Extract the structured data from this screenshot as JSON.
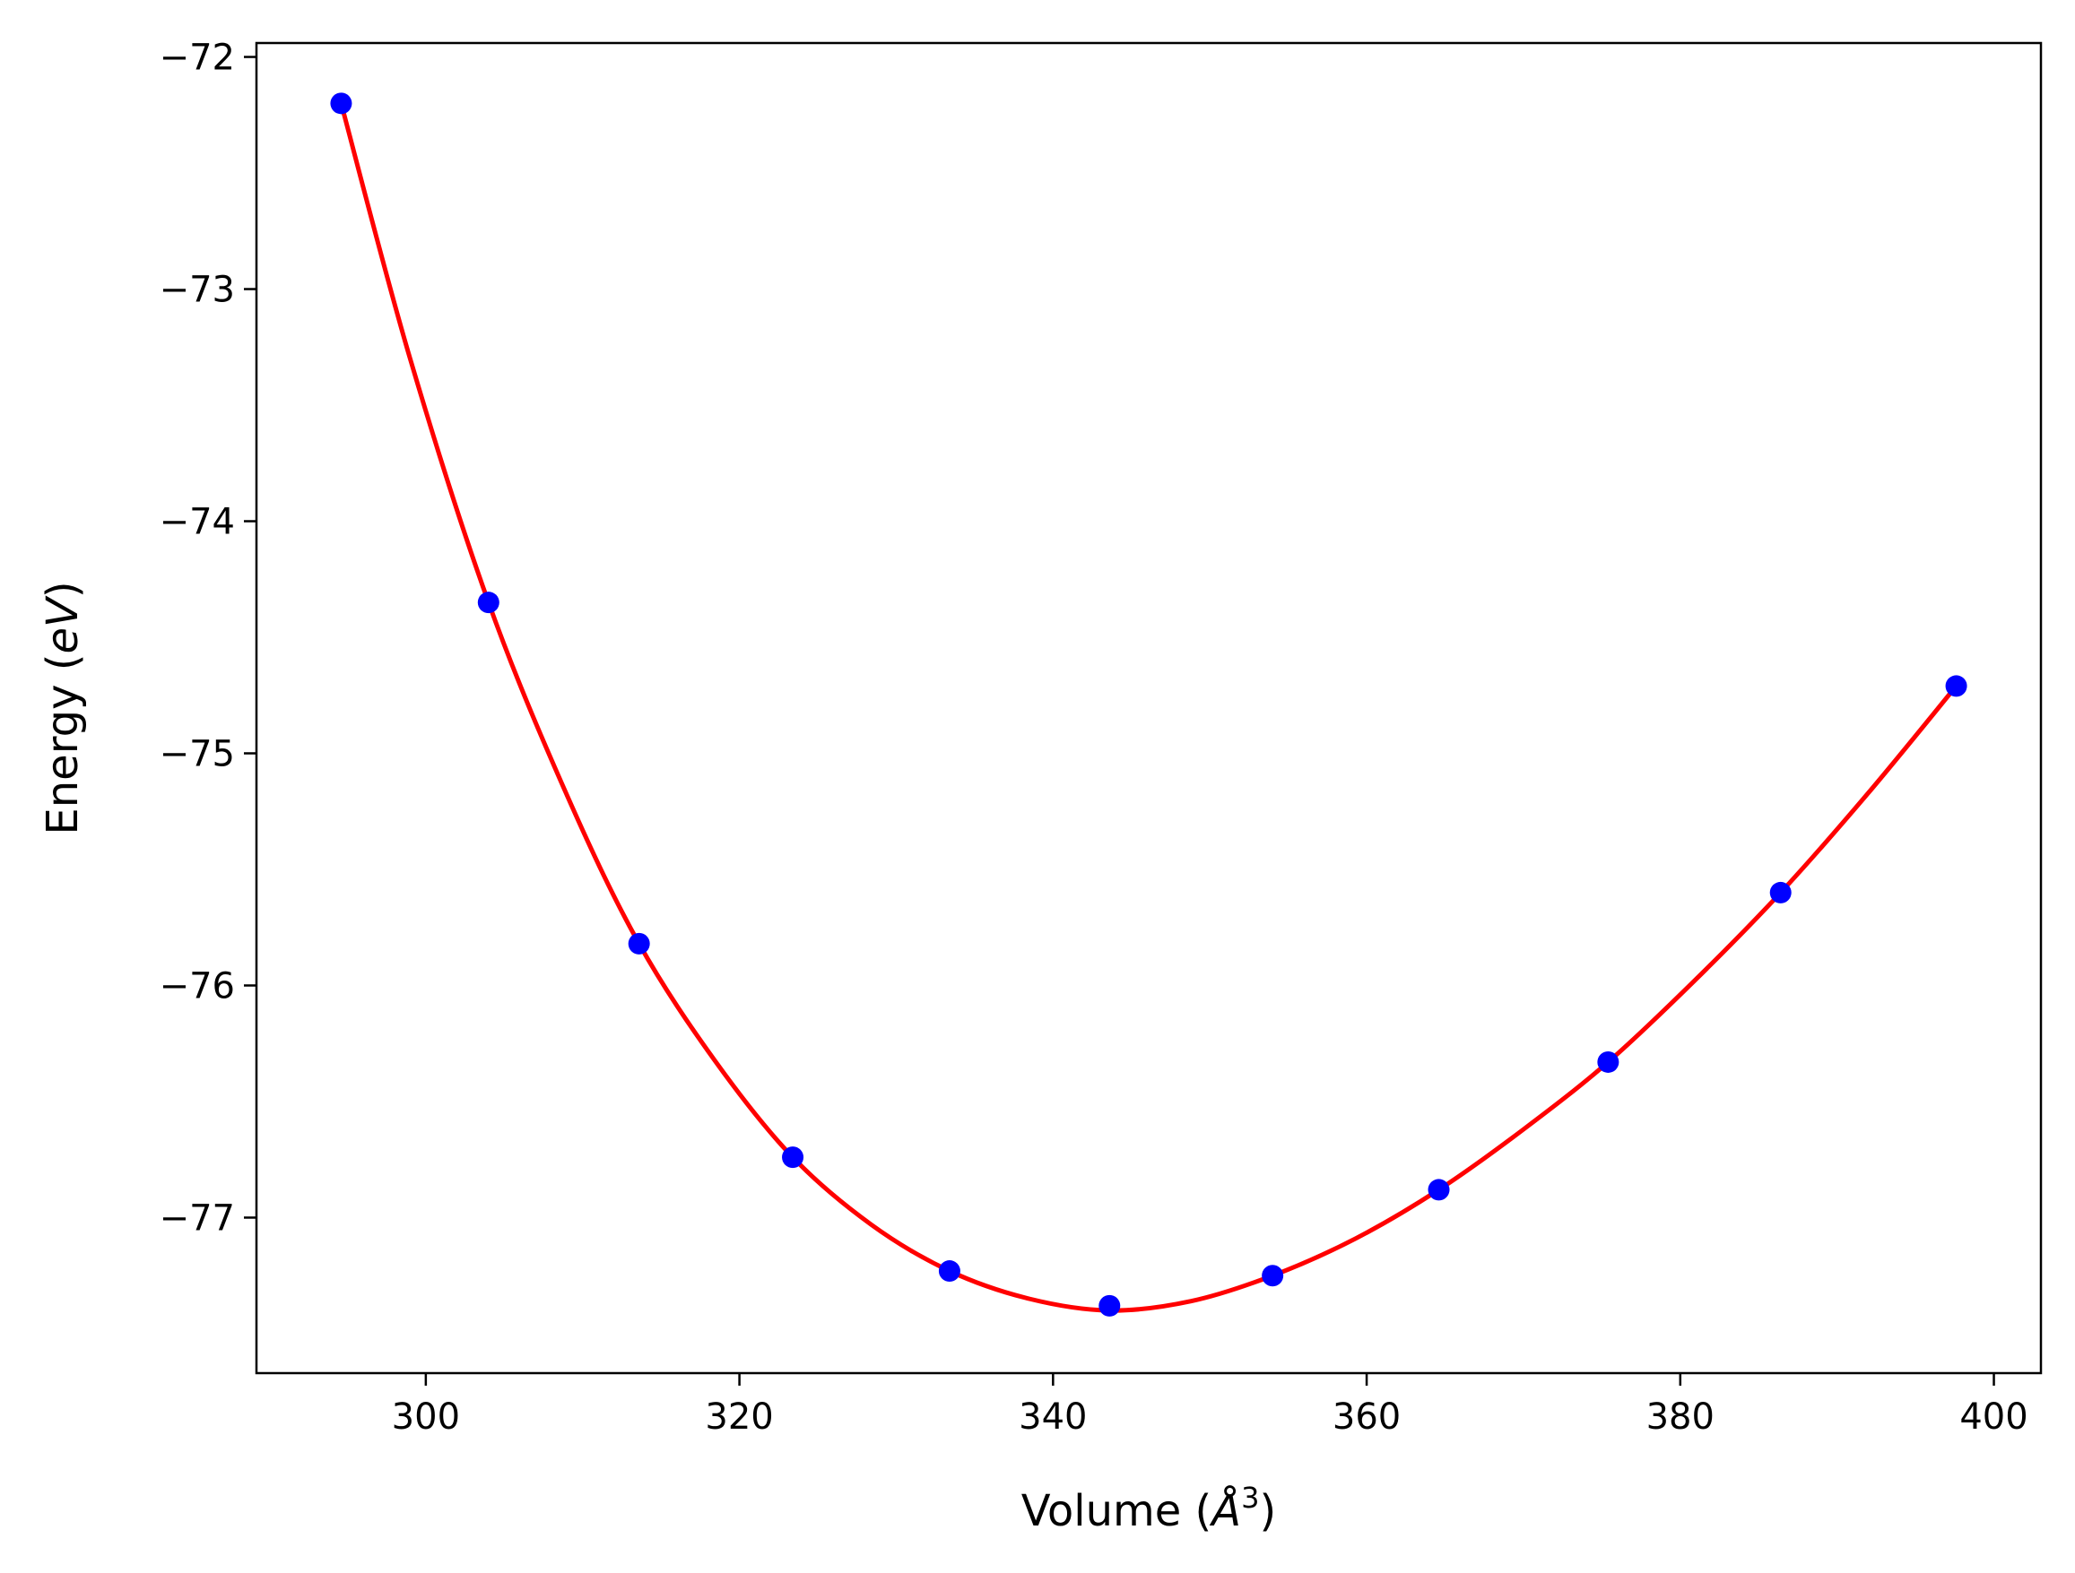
{
  "chart_data": {
    "type": "scatter",
    "title": "",
    "xlabel": "Volume ($\\AA^3$)",
    "ylabel": "Energy ($eV$)",
    "xlabel_parts": {
      "prefix": "Volume (",
      "symbol": "Å",
      "sup": "3",
      "suffix": ")"
    },
    "ylabel_parts": {
      "prefix": "Energy (",
      "symbol": "eV",
      "suffix": ")"
    },
    "xlim": [
      289.2,
      403.0
    ],
    "ylim": [
      -77.67,
      -71.94
    ],
    "xticks": [
      300,
      320,
      340,
      360,
      380,
      400
    ],
    "xtick_labels": [
      "300",
      "320",
      "340",
      "360",
      "380",
      "400"
    ],
    "yticks": [
      -72,
      -73,
      -74,
      -75,
      -76,
      -77
    ],
    "ytick_labels": [
      "−72",
      "−73",
      "−74",
      "−75",
      "−76",
      "−77"
    ],
    "grid": false,
    "series": [
      {
        "kind": "points",
        "color": "#0000ff",
        "points": [
          {
            "x": 294.6,
            "y": -72.2
          },
          {
            "x": 304.0,
            "y": -74.35
          },
          {
            "x": 313.6,
            "y": -75.82
          },
          {
            "x": 323.4,
            "y": -76.74
          },
          {
            "x": 333.4,
            "y": -77.23
          },
          {
            "x": 343.6,
            "y": -77.38
          },
          {
            "x": 354.0,
            "y": -77.25
          },
          {
            "x": 364.6,
            "y": -76.88
          },
          {
            "x": 375.4,
            "y": -76.33
          },
          {
            "x": 386.4,
            "y": -75.6
          },
          {
            "x": 397.6,
            "y": -74.71
          }
        ]
      },
      {
        "kind": "fit-line",
        "color": "#ff0000",
        "points": [
          {
            "x": 294.6,
            "y": -72.2
          },
          {
            "x": 299.0,
            "y": -73.3
          },
          {
            "x": 304.0,
            "y": -74.35
          },
          {
            "x": 309.0,
            "y": -75.18
          },
          {
            "x": 313.6,
            "y": -75.82
          },
          {
            "x": 318.5,
            "y": -76.33
          },
          {
            "x": 323.4,
            "y": -76.74
          },
          {
            "x": 328.4,
            "y": -77.03
          },
          {
            "x": 333.4,
            "y": -77.23
          },
          {
            "x": 338.5,
            "y": -77.35
          },
          {
            "x": 343.6,
            "y": -77.4
          },
          {
            "x": 348.8,
            "y": -77.36
          },
          {
            "x": 354.0,
            "y": -77.25
          },
          {
            "x": 359.3,
            "y": -77.09
          },
          {
            "x": 364.6,
            "y": -76.88
          },
          {
            "x": 370.0,
            "y": -76.62
          },
          {
            "x": 375.4,
            "y": -76.33
          },
          {
            "x": 380.9,
            "y": -75.98
          },
          {
            "x": 386.4,
            "y": -75.6
          },
          {
            "x": 392.0,
            "y": -75.17
          },
          {
            "x": 397.6,
            "y": -74.71
          }
        ]
      }
    ]
  }
}
